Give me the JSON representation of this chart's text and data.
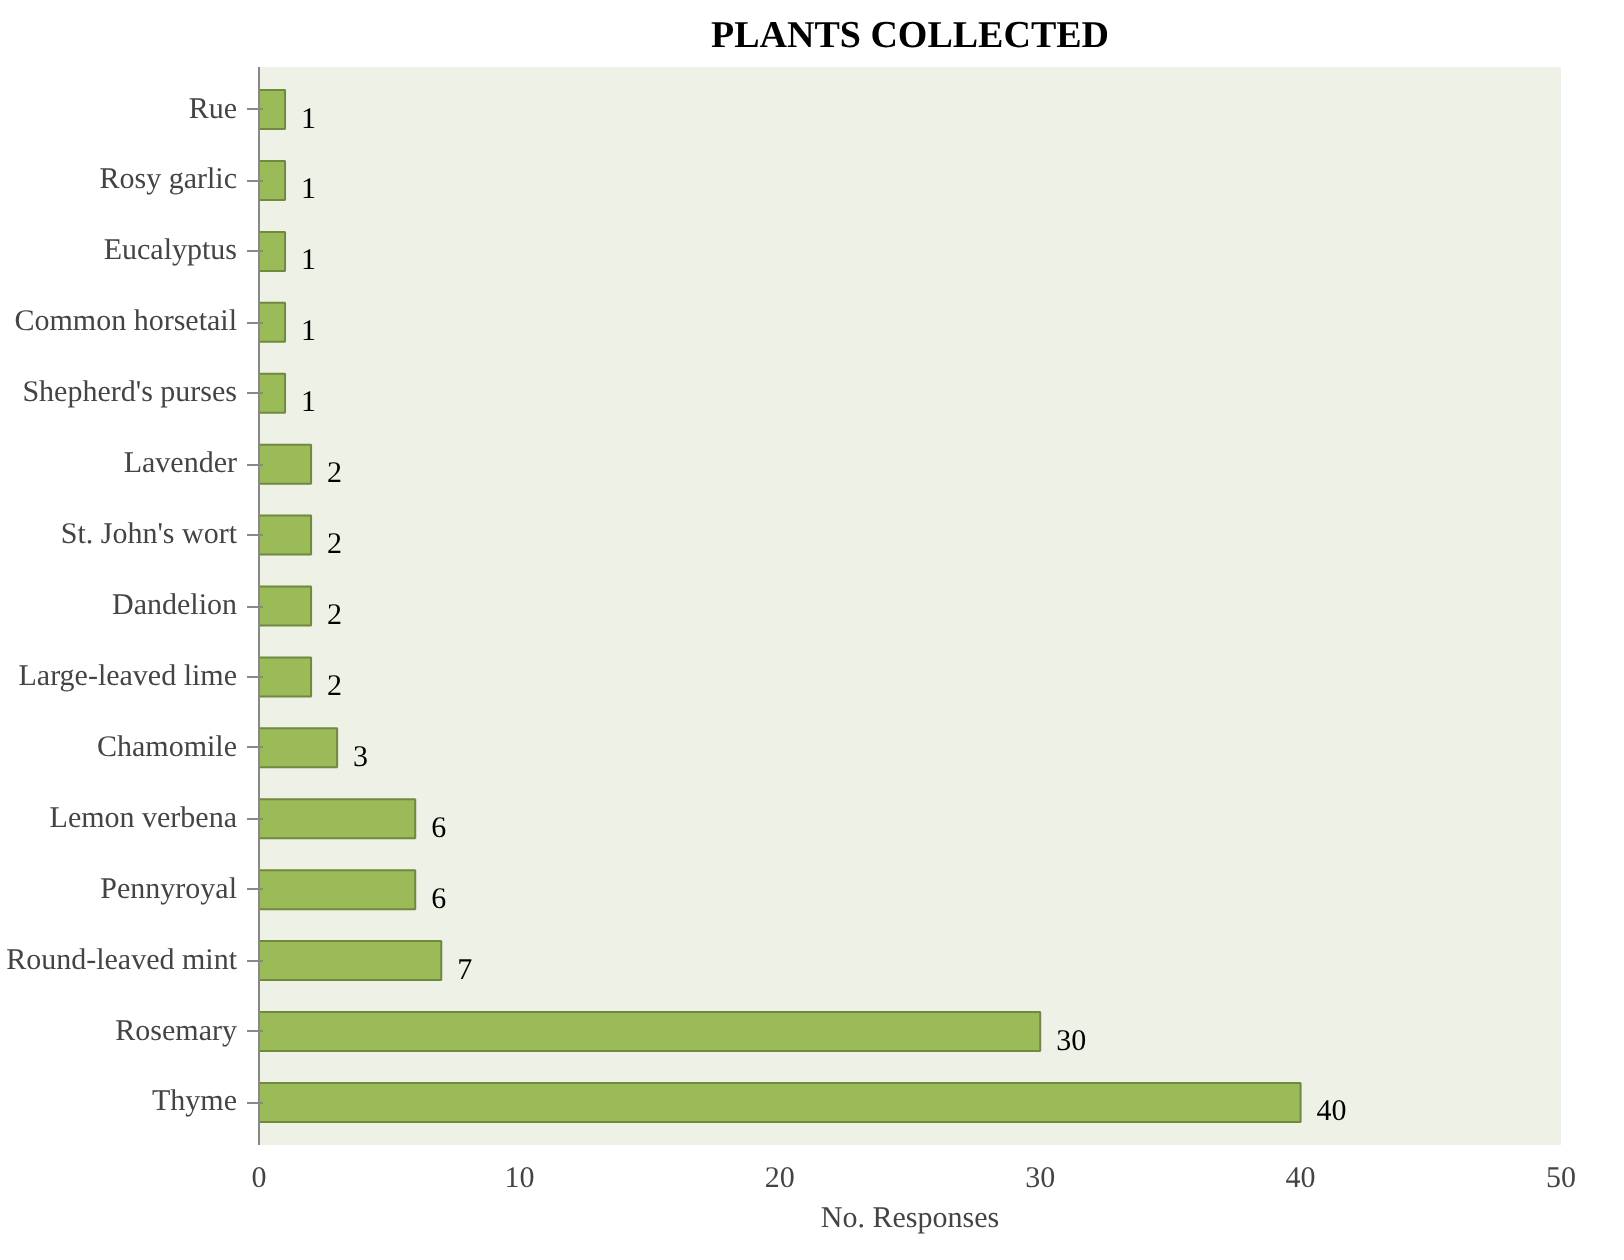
{
  "chart_data": {
    "type": "bar",
    "orientation": "horizontal",
    "title": "PLANTS COLLECTED",
    "xlabel": "No. Responses",
    "categories": [
      "Rue",
      "Rosy garlic",
      "Eucalyptus",
      "Common horsetail",
      "Shepherd's purses",
      "Lavender",
      "St. John's wort",
      "Dandelion",
      "Large-leaved lime",
      "Chamomile",
      "Lemon verbena",
      "Pennyroyal",
      "Round-leaved mint",
      "Rosemary",
      "Thyme"
    ],
    "values": [
      1,
      1,
      1,
      1,
      1,
      2,
      2,
      2,
      2,
      3,
      6,
      6,
      7,
      30,
      40
    ],
    "color": "#9bbb59",
    "xlim": [
      0,
      50
    ],
    "xticks": [
      0,
      10,
      20,
      30,
      40,
      50
    ],
    "grid": false,
    "data_labels": true
  }
}
